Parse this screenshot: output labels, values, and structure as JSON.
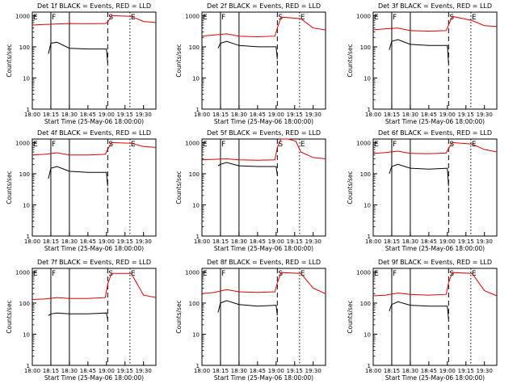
{
  "figure": {
    "xlabel": "Start Time (25-May-06 18:00:00)",
    "ylabel": "Counts/sec",
    "x_ticks": [
      "18:00",
      "18:15",
      "18:30",
      "18:45",
      "19:00",
      "19:15",
      "19:30"
    ],
    "y_ticks": [
      "1",
      "10",
      "100",
      "1000"
    ],
    "colors": {
      "events": "#000000",
      "lld": "#e00000"
    }
  },
  "chart_data": [
    {
      "type": "line",
      "title": "Det 1f BLACK = Events, RED = LLD",
      "xlim": [
        "18:00",
        "19:40"
      ],
      "ylim": [
        1,
        1300
      ],
      "yscale": "log",
      "markers": [
        {
          "label": "E",
          "x": "18:00",
          "style": "dotted"
        },
        {
          "label": "F",
          "x": "18:15",
          "style": "solid"
        },
        {
          "label": "",
          "x": "18:30",
          "style": "solid"
        },
        {
          "label": "S",
          "x": "19:01",
          "style": "dashed"
        },
        {
          "label": "E",
          "x": "19:19",
          "style": "dotted"
        }
      ],
      "series": [
        {
          "name": "Events",
          "x": [
            "18:13",
            "18:15",
            "18:20",
            "18:30",
            "18:45",
            "19:00",
            "19:01"
          ],
          "values": [
            60,
            130,
            140,
            90,
            85,
            85,
            30
          ]
        },
        {
          "name": "LLD",
          "x": [
            "18:00",
            "18:10",
            "18:30",
            "18:45",
            "18:59",
            "19:01",
            "19:04",
            "19:20",
            "19:30",
            "19:40"
          ],
          "values": [
            500,
            520,
            560,
            550,
            560,
            620,
            1000,
            950,
            650,
            600
          ]
        }
      ]
    },
    {
      "type": "line",
      "title": "Det 2f BLACK = Events, RED = LLD",
      "xlim": [
        "18:00",
        "19:40"
      ],
      "ylim": [
        1,
        1300
      ],
      "yscale": "log",
      "markers": [
        {
          "label": "E",
          "x": "18:00",
          "style": "dotted"
        },
        {
          "label": "F",
          "x": "18:15",
          "style": "solid"
        },
        {
          "label": "",
          "x": "18:30",
          "style": "solid"
        },
        {
          "label": "S",
          "x": "19:01",
          "style": "dashed"
        },
        {
          "label": "E",
          "x": "19:19",
          "style": "dotted"
        }
      ],
      "series": [
        {
          "name": "Events",
          "x": [
            "18:13",
            "18:15",
            "18:20",
            "18:30",
            "18:45",
            "19:00",
            "19:01"
          ],
          "values": [
            90,
            130,
            150,
            110,
            100,
            100,
            40
          ]
        },
        {
          "name": "LLD",
          "x": [
            "18:00",
            "18:10",
            "18:20",
            "18:30",
            "18:45",
            "18:59",
            "19:01",
            "19:04",
            "19:20",
            "19:30",
            "19:40"
          ],
          "values": [
            220,
            240,
            260,
            220,
            210,
            220,
            400,
            900,
            800,
            400,
            350
          ]
        }
      ]
    },
    {
      "type": "line",
      "title": "Det 3f BLACK = Events, RED = LLD",
      "xlim": [
        "18:00",
        "19:40"
      ],
      "ylim": [
        1,
        1300
      ],
      "yscale": "log",
      "markers": [
        {
          "label": "E",
          "x": "18:00",
          "style": "dotted"
        },
        {
          "label": "F",
          "x": "18:15",
          "style": "solid"
        },
        {
          "label": "",
          "x": "18:30",
          "style": "solid"
        },
        {
          "label": "S",
          "x": "19:01",
          "style": "dashed"
        },
        {
          "label": "E",
          "x": "19:19",
          "style": "dotted"
        }
      ],
      "series": [
        {
          "name": "Events",
          "x": [
            "18:13",
            "18:15",
            "18:20",
            "18:30",
            "18:45",
            "19:00",
            "19:01"
          ],
          "values": [
            80,
            150,
            170,
            120,
            110,
            110,
            30
          ]
        },
        {
          "name": "LLD",
          "x": [
            "18:00",
            "18:10",
            "18:20",
            "18:30",
            "18:45",
            "18:59",
            "19:01",
            "19:04",
            "19:20",
            "19:30",
            "19:40"
          ],
          "values": [
            350,
            380,
            400,
            330,
            320,
            330,
            500,
            950,
            700,
            480,
            450
          ]
        }
      ]
    },
    {
      "type": "line",
      "title": "Det 4f BLACK = Events, RED = LLD",
      "xlim": [
        "18:00",
        "19:40"
      ],
      "ylim": [
        1,
        1300
      ],
      "yscale": "log",
      "markers": [
        {
          "label": "E",
          "x": "18:00",
          "style": "dotted"
        },
        {
          "label": "F",
          "x": "18:15",
          "style": "solid"
        },
        {
          "label": "",
          "x": "18:30",
          "style": "solid"
        },
        {
          "label": "S",
          "x": "19:01",
          "style": "dashed"
        },
        {
          "label": "E",
          "x": "19:19",
          "style": "dotted"
        }
      ],
      "series": [
        {
          "name": "Events",
          "x": [
            "18:13",
            "18:15",
            "18:20",
            "18:30",
            "18:45",
            "19:00",
            "19:01"
          ],
          "values": [
            70,
            150,
            170,
            120,
            110,
            110,
            40
          ]
        },
        {
          "name": "LLD",
          "x": [
            "18:00",
            "18:10",
            "18:20",
            "18:30",
            "18:45",
            "18:59",
            "19:01",
            "19:04",
            "19:20",
            "19:30",
            "19:40"
          ],
          "values": [
            400,
            420,
            470,
            400,
            400,
            420,
            600,
            1000,
            950,
            750,
            700
          ]
        }
      ]
    },
    {
      "type": "line",
      "title": "Det 5f BLACK = Events, RED = LLD",
      "xlim": [
        "18:00",
        "19:40"
      ],
      "ylim": [
        1,
        1300
      ],
      "yscale": "log",
      "markers": [
        {
          "label": "E",
          "x": "18:00",
          "style": "dotted"
        },
        {
          "label": "F",
          "x": "18:15",
          "style": "solid"
        },
        {
          "label": "",
          "x": "18:30",
          "style": "solid"
        },
        {
          "label": "S",
          "x": "19:01",
          "style": "dashed"
        },
        {
          "label": "E",
          "x": "19:19",
          "style": "dotted"
        }
      ],
      "series": [
        {
          "name": "Events",
          "x": [
            "18:13",
            "18:15",
            "18:20",
            "18:30",
            "18:45",
            "19:00",
            "19:01"
          ],
          "values": [
            180,
            200,
            230,
            180,
            170,
            170,
            90
          ]
        },
        {
          "name": "LLD",
          "x": [
            "18:00",
            "18:10",
            "18:20",
            "18:30",
            "18:45",
            "18:59",
            "19:01",
            "19:04",
            "19:10",
            "19:16",
            "19:20",
            "19:30",
            "19:40"
          ],
          "values": [
            280,
            290,
            300,
            280,
            270,
            280,
            700,
            1300,
            1300,
            1100,
            500,
            330,
            300
          ]
        }
      ]
    },
    {
      "type": "line",
      "title": "Det 6f BLACK = Events, RED = LLD",
      "xlim": [
        "18:00",
        "19:40"
      ],
      "ylim": [
        1,
        1300
      ],
      "yscale": "log",
      "markers": [
        {
          "label": "E",
          "x": "18:00",
          "style": "dotted"
        },
        {
          "label": "F",
          "x": "18:15",
          "style": "solid"
        },
        {
          "label": "",
          "x": "18:30",
          "style": "solid"
        },
        {
          "label": "S",
          "x": "19:01",
          "style": "dashed"
        },
        {
          "label": "E",
          "x": "19:19",
          "style": "dotted"
        }
      ],
      "series": [
        {
          "name": "Events",
          "x": [
            "18:13",
            "18:15",
            "18:20",
            "18:30",
            "18:45",
            "19:00",
            "19:01"
          ],
          "values": [
            100,
            170,
            200,
            150,
            140,
            150,
            40
          ]
        },
        {
          "name": "LLD",
          "x": [
            "18:00",
            "18:10",
            "18:20",
            "18:30",
            "18:45",
            "18:59",
            "19:01",
            "19:04",
            "19:20",
            "19:30",
            "19:40"
          ],
          "values": [
            450,
            480,
            530,
            450,
            440,
            460,
            650,
            1000,
            900,
            600,
            500
          ]
        }
      ]
    },
    {
      "type": "line",
      "title": "Det 7f BLACK = Events, RED = LLD",
      "xlim": [
        "18:00",
        "19:40"
      ],
      "ylim": [
        1,
        1300
      ],
      "yscale": "log",
      "markers": [
        {
          "label": "E",
          "x": "18:00",
          "style": "dotted"
        },
        {
          "label": "F",
          "x": "18:15",
          "style": "solid"
        },
        {
          "label": "",
          "x": "18:30",
          "style": "solid"
        },
        {
          "label": "S",
          "x": "19:01",
          "style": "dashed"
        },
        {
          "label": "E",
          "x": "19:19",
          "style": "dotted"
        }
      ],
      "series": [
        {
          "name": "Events",
          "x": [
            "18:13",
            "18:15",
            "18:20",
            "18:30",
            "18:45",
            "19:00",
            "19:01"
          ],
          "values": [
            40,
            45,
            48,
            45,
            45,
            48,
            30
          ]
        },
        {
          "name": "LLD",
          "x": [
            "18:00",
            "18:10",
            "18:20",
            "18:30",
            "18:45",
            "18:59",
            "19:01",
            "19:04",
            "19:20",
            "19:30",
            "19:40"
          ],
          "values": [
            130,
            135,
            150,
            140,
            140,
            150,
            400,
            900,
            900,
            180,
            150
          ]
        }
      ]
    },
    {
      "type": "line",
      "title": "Det 8f BLACK = Events, RED = LLD",
      "xlim": [
        "18:00",
        "19:40"
      ],
      "ylim": [
        1,
        1300
      ],
      "yscale": "log",
      "markers": [
        {
          "label": "E",
          "x": "18:00",
          "style": "dotted"
        },
        {
          "label": "F",
          "x": "18:15",
          "style": "solid"
        },
        {
          "label": "",
          "x": "18:30",
          "style": "solid"
        },
        {
          "label": "S",
          "x": "19:01",
          "style": "dashed"
        },
        {
          "label": "E",
          "x": "19:19",
          "style": "dotted"
        }
      ],
      "series": [
        {
          "name": "Events",
          "x": [
            "18:13",
            "18:15",
            "18:20",
            "18:30",
            "18:45",
            "19:00",
            "19:01"
          ],
          "values": [
            50,
            100,
            120,
            90,
            80,
            85,
            40
          ]
        },
        {
          "name": "LLD",
          "x": [
            "18:00",
            "18:10",
            "18:20",
            "18:30",
            "18:45",
            "18:59",
            "19:01",
            "19:04",
            "19:20",
            "19:30",
            "19:40"
          ],
          "values": [
            200,
            220,
            270,
            230,
            220,
            230,
            450,
            950,
            900,
            300,
            200
          ]
        }
      ]
    },
    {
      "type": "line",
      "title": "Det 9f BLACK = Events, RED = LLD",
      "xlim": [
        "18:00",
        "19:40"
      ],
      "ylim": [
        1,
        1300
      ],
      "yscale": "log",
      "markers": [
        {
          "label": "E",
          "x": "18:00",
          "style": "dotted"
        },
        {
          "label": "F",
          "x": "18:15",
          "style": "solid"
        },
        {
          "label": "",
          "x": "18:30",
          "style": "solid"
        },
        {
          "label": "S",
          "x": "19:01",
          "style": "dashed"
        },
        {
          "label": "E",
          "x": "19:19",
          "style": "dotted"
        }
      ],
      "series": [
        {
          "name": "Events",
          "x": [
            "18:13",
            "18:15",
            "18:20",
            "18:30",
            "18:45",
            "19:00",
            "19:01"
          ],
          "values": [
            55,
            90,
            110,
            85,
            80,
            80,
            30
          ]
        },
        {
          "name": "LLD",
          "x": [
            "18:00",
            "18:10",
            "18:20",
            "18:30",
            "18:45",
            "18:59",
            "19:01",
            "19:04",
            "19:20",
            "19:30",
            "19:40"
          ],
          "values": [
            170,
            180,
            210,
            190,
            180,
            190,
            450,
            950,
            900,
            250,
            170
          ]
        }
      ]
    }
  ]
}
